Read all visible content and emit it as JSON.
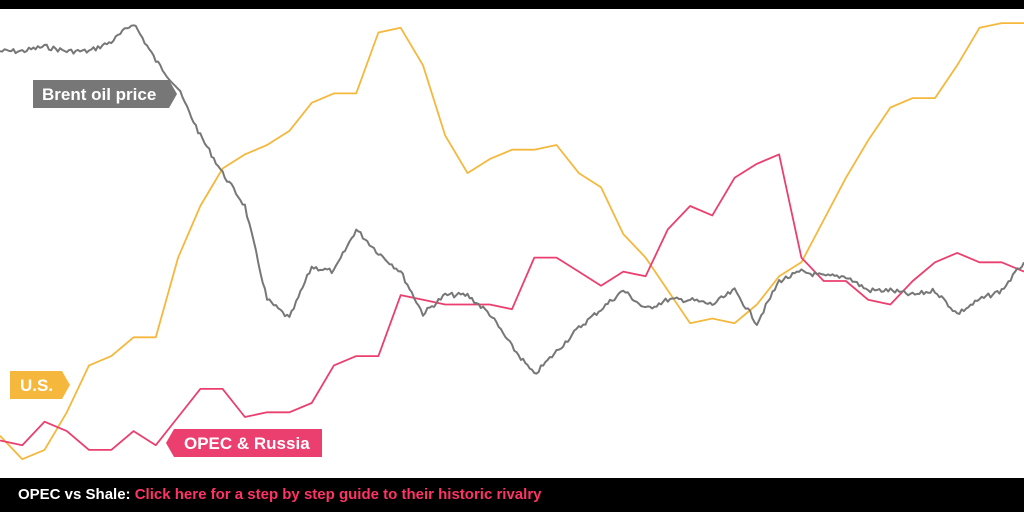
{
  "chart_data": {
    "type": "line",
    "title": "",
    "xlabel": "",
    "ylabel": "",
    "grid": false,
    "legend": "none",
    "x": [
      0,
      1,
      2,
      3,
      4,
      5,
      6,
      7,
      8,
      9,
      10,
      11,
      12,
      13,
      14,
      15,
      16,
      17,
      18,
      19,
      20,
      21,
      22,
      23,
      24,
      25,
      26,
      27,
      28,
      29,
      30,
      31,
      32,
      33,
      34,
      35,
      36,
      37,
      38,
      39,
      40,
      41,
      42,
      43,
      44,
      45,
      46
    ],
    "xlim": [
      0,
      46
    ],
    "ylim": [
      0,
      100
    ],
    "series": [
      {
        "name": "U.S.",
        "color": "#f5b83d",
        "values": [
          9,
          4,
          6,
          14,
          24,
          26,
          30,
          30,
          47,
          58,
          66,
          69,
          71,
          74,
          80,
          82,
          82,
          95,
          96,
          88,
          73,
          65,
          68,
          70,
          70,
          71,
          65,
          62,
          52,
          47,
          40,
          33,
          34,
          33,
          37,
          43,
          46,
          55,
          64,
          72,
          79,
          81,
          81,
          88,
          96,
          97,
          97
        ]
      },
      {
        "name": "OPEC & Russia",
        "color": "#ea3f6f",
        "values": [
          8,
          7,
          12,
          10,
          6,
          6,
          10,
          7,
          13,
          19,
          19,
          13,
          14,
          14,
          16,
          24,
          26,
          26,
          39,
          38,
          37,
          37,
          37,
          36,
          47,
          47,
          44,
          41,
          44,
          43,
          53,
          58,
          56,
          64,
          67,
          69,
          47,
          42,
          42,
          38,
          37,
          42,
          46,
          48,
          46,
          46,
          44
        ]
      },
      {
        "name": "Brent oil price",
        "color": "#777777",
        "values": [
          91,
          91,
          92,
          91,
          91,
          93,
          97,
          89,
          83,
          73,
          65,
          58,
          38,
          34,
          45,
          44,
          53,
          48,
          44,
          35,
          39,
          39,
          35,
          28,
          22,
          27,
          32,
          36,
          40,
          36,
          38,
          38,
          37,
          40,
          33,
          42,
          44,
          43,
          43,
          40,
          40,
          39,
          40,
          35,
          38,
          40,
          46
        ]
      }
    ],
    "labels": {
      "brent": "Brent oil price",
      "us": "U.S.",
      "opec": "OPEC & Russia"
    }
  },
  "footer": {
    "prefix": "OPEC vs Shale:",
    "link": "Click here for a step by step guide to their historic rivalry"
  }
}
